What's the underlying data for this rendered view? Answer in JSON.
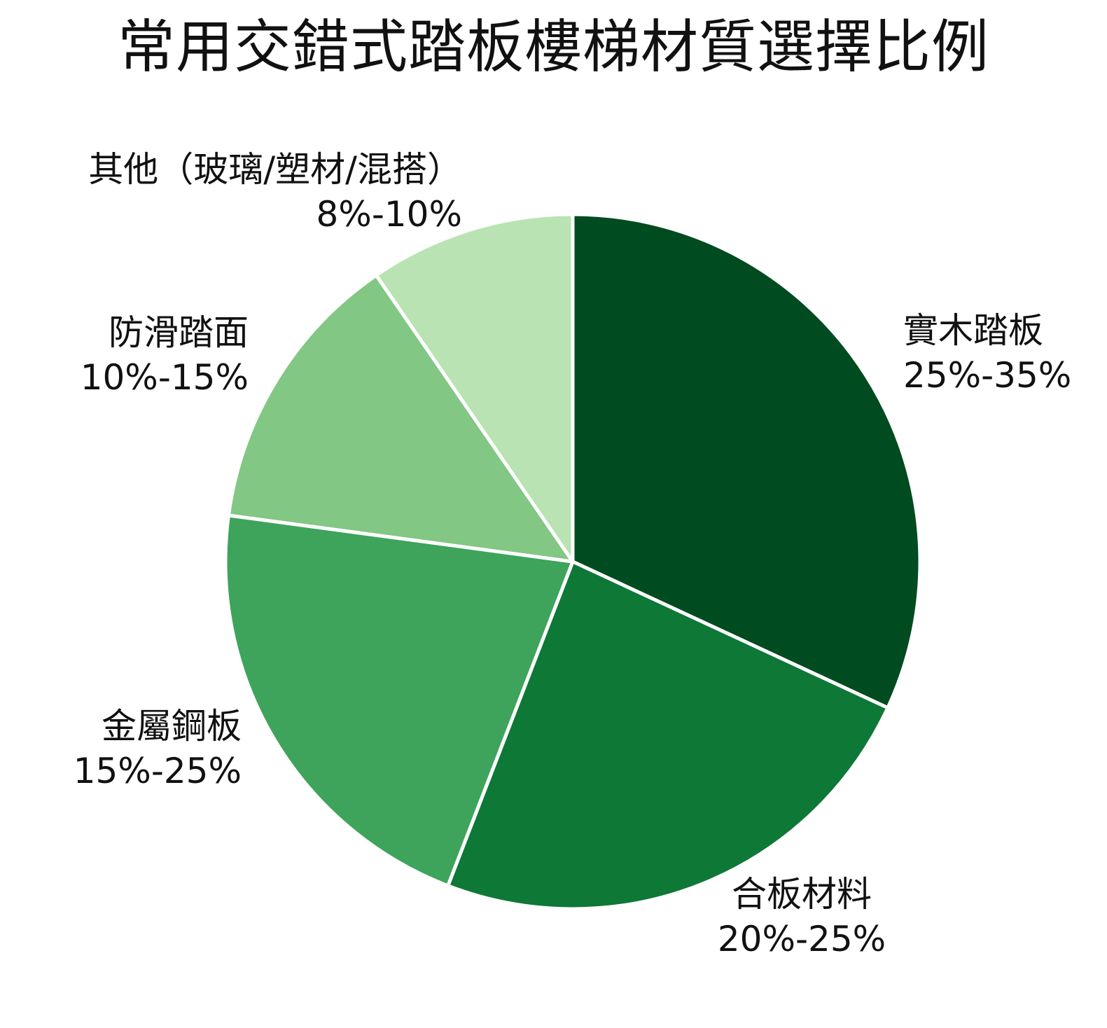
{
  "chart_data": {
    "type": "pie",
    "title": "常用交錯式踏板樓梯材質選擇比例",
    "slices": [
      {
        "label": "實木踏板",
        "range_text": "25%-35%",
        "value": 30,
        "color": "#004b1f"
      },
      {
        "label": "合板材料",
        "range_text": "20%-25%",
        "value": 22.5,
        "color": "#0e7837"
      },
      {
        "label": "金屬鋼板",
        "range_text": "15%-25%",
        "value": 20,
        "color": "#3ea45b"
      },
      {
        "label": "防滑踏面",
        "range_text": "10%-15%",
        "value": 12.5,
        "color": "#82c784"
      },
      {
        "label": "其他（玻璃/塑材/混搭）",
        "range_text": "8%-10%",
        "value": 9,
        "color": "#b9e3b3"
      }
    ],
    "start_angle": "12 o'clock",
    "direction": "clockwise",
    "legend": "none",
    "slice_border_color": "#ffffff"
  }
}
